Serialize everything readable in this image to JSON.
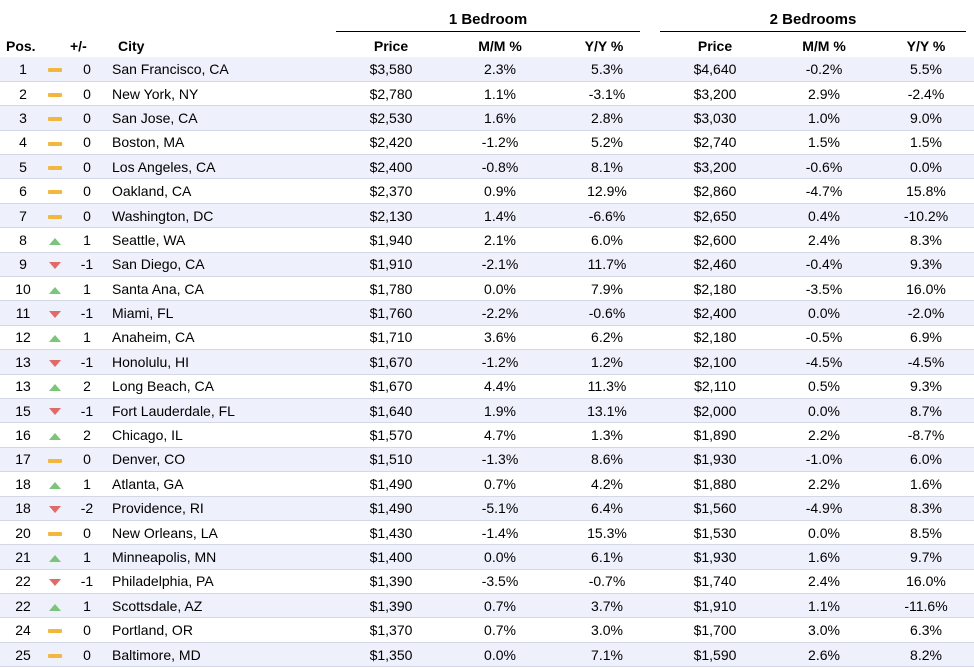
{
  "chart_data": {
    "type": "table",
    "groups": [
      "1 Bedroom",
      "2 Bedrooms"
    ],
    "columns": [
      "Pos.",
      "+/-",
      "City",
      "Price",
      "M/M %",
      "Y/Y %",
      "Price",
      "M/M %",
      "Y/Y %"
    ],
    "rows": [
      {
        "pos": "1",
        "trend": "flat",
        "chg": "0",
        "city": "San Francisco, CA",
        "p1": "$3,580",
        "mm1": "2.3%",
        "yy1": "5.3%",
        "p2": "$4,640",
        "mm2": "-0.2%",
        "yy2": "5.5%"
      },
      {
        "pos": "2",
        "trend": "flat",
        "chg": "0",
        "city": "New York, NY",
        "p1": "$2,780",
        "mm1": "1.1%",
        "yy1": "-3.1%",
        "p2": "$3,200",
        "mm2": "2.9%",
        "yy2": "-2.4%"
      },
      {
        "pos": "3",
        "trend": "flat",
        "chg": "0",
        "city": "San Jose, CA",
        "p1": "$2,530",
        "mm1": "1.6%",
        "yy1": "2.8%",
        "p2": "$3,030",
        "mm2": "1.0%",
        "yy2": "9.0%"
      },
      {
        "pos": "4",
        "trend": "flat",
        "chg": "0",
        "city": "Boston, MA",
        "p1": "$2,420",
        "mm1": "-1.2%",
        "yy1": "5.2%",
        "p2": "$2,740",
        "mm2": "1.5%",
        "yy2": "1.5%"
      },
      {
        "pos": "5",
        "trend": "flat",
        "chg": "0",
        "city": "Los Angeles, CA",
        "p1": "$2,400",
        "mm1": "-0.8%",
        "yy1": "8.1%",
        "p2": "$3,200",
        "mm2": "-0.6%",
        "yy2": "0.0%"
      },
      {
        "pos": "6",
        "trend": "flat",
        "chg": "0",
        "city": "Oakland, CA",
        "p1": "$2,370",
        "mm1": "0.9%",
        "yy1": "12.9%",
        "p2": "$2,860",
        "mm2": "-4.7%",
        "yy2": "15.8%"
      },
      {
        "pos": "7",
        "trend": "flat",
        "chg": "0",
        "city": "Washington, DC",
        "p1": "$2,130",
        "mm1": "1.4%",
        "yy1": "-6.6%",
        "p2": "$2,650",
        "mm2": "0.4%",
        "yy2": "-10.2%"
      },
      {
        "pos": "8",
        "trend": "up",
        "chg": "1",
        "city": "Seattle, WA",
        "p1": "$1,940",
        "mm1": "2.1%",
        "yy1": "6.0%",
        "p2": "$2,600",
        "mm2": "2.4%",
        "yy2": "8.3%"
      },
      {
        "pos": "9",
        "trend": "down",
        "chg": "-1",
        "city": "San Diego, CA",
        "p1": "$1,910",
        "mm1": "-2.1%",
        "yy1": "11.7%",
        "p2": "$2,460",
        "mm2": "-0.4%",
        "yy2": "9.3%"
      },
      {
        "pos": "10",
        "trend": "up",
        "chg": "1",
        "city": "Santa Ana, CA",
        "p1": "$1,780",
        "mm1": "0.0%",
        "yy1": "7.9%",
        "p2": "$2,180",
        "mm2": "-3.5%",
        "yy2": "16.0%"
      },
      {
        "pos": "11",
        "trend": "down",
        "chg": "-1",
        "city": "Miami, FL",
        "p1": "$1,760",
        "mm1": "-2.2%",
        "yy1": "-0.6%",
        "p2": "$2,400",
        "mm2": "0.0%",
        "yy2": "-2.0%"
      },
      {
        "pos": "12",
        "trend": "up",
        "chg": "1",
        "city": "Anaheim, CA",
        "p1": "$1,710",
        "mm1": "3.6%",
        "yy1": "6.2%",
        "p2": "$2,180",
        "mm2": "-0.5%",
        "yy2": "6.9%"
      },
      {
        "pos": "13",
        "trend": "down",
        "chg": "-1",
        "city": "Honolulu, HI",
        "p1": "$1,670",
        "mm1": "-1.2%",
        "yy1": "1.2%",
        "p2": "$2,100",
        "mm2": "-4.5%",
        "yy2": "-4.5%"
      },
      {
        "pos": "13",
        "trend": "up",
        "chg": "2",
        "city": "Long Beach, CA",
        "p1": "$1,670",
        "mm1": "4.4%",
        "yy1": "11.3%",
        "p2": "$2,110",
        "mm2": "0.5%",
        "yy2": "9.3%"
      },
      {
        "pos": "15",
        "trend": "down",
        "chg": "-1",
        "city": "Fort Lauderdale, FL",
        "p1": "$1,640",
        "mm1": "1.9%",
        "yy1": "13.1%",
        "p2": "$2,000",
        "mm2": "0.0%",
        "yy2": "8.7%"
      },
      {
        "pos": "16",
        "trend": "up",
        "chg": "2",
        "city": "Chicago, IL",
        "p1": "$1,570",
        "mm1": "4.7%",
        "yy1": "1.3%",
        "p2": "$1,890",
        "mm2": "2.2%",
        "yy2": "-8.7%"
      },
      {
        "pos": "17",
        "trend": "flat",
        "chg": "0",
        "city": "Denver, CO",
        "p1": "$1,510",
        "mm1": "-1.3%",
        "yy1": "8.6%",
        "p2": "$1,930",
        "mm2": "-1.0%",
        "yy2": "6.0%"
      },
      {
        "pos": "18",
        "trend": "up",
        "chg": "1",
        "city": "Atlanta, GA",
        "p1": "$1,490",
        "mm1": "0.7%",
        "yy1": "4.2%",
        "p2": "$1,880",
        "mm2": "2.2%",
        "yy2": "1.6%"
      },
      {
        "pos": "18",
        "trend": "down",
        "chg": "-2",
        "city": "Providence, RI",
        "p1": "$1,490",
        "mm1": "-5.1%",
        "yy1": "6.4%",
        "p2": "$1,560",
        "mm2": "-4.9%",
        "yy2": "8.3%"
      },
      {
        "pos": "20",
        "trend": "flat",
        "chg": "0",
        "city": "New Orleans, LA",
        "p1": "$1,430",
        "mm1": "-1.4%",
        "yy1": "15.3%",
        "p2": "$1,530",
        "mm2": "0.0%",
        "yy2": "8.5%"
      },
      {
        "pos": "21",
        "trend": "up",
        "chg": "1",
        "city": "Minneapolis, MN",
        "p1": "$1,400",
        "mm1": "0.0%",
        "yy1": "6.1%",
        "p2": "$1,930",
        "mm2": "1.6%",
        "yy2": "9.7%"
      },
      {
        "pos": "22",
        "trend": "down",
        "chg": "-1",
        "city": "Philadelphia, PA",
        "p1": "$1,390",
        "mm1": "-3.5%",
        "yy1": "-0.7%",
        "p2": "$1,740",
        "mm2": "2.4%",
        "yy2": "16.0%"
      },
      {
        "pos": "22",
        "trend": "up",
        "chg": "1",
        "city": "Scottsdale, AZ",
        "p1": "$1,390",
        "mm1": "0.7%",
        "yy1": "3.7%",
        "p2": "$1,910",
        "mm2": "1.1%",
        "yy2": "-11.6%"
      },
      {
        "pos": "24",
        "trend": "flat",
        "chg": "0",
        "city": "Portland, OR",
        "p1": "$1,370",
        "mm1": "0.7%",
        "yy1": "3.0%",
        "p2": "$1,700",
        "mm2": "3.0%",
        "yy2": "6.3%"
      },
      {
        "pos": "25",
        "trend": "flat",
        "chg": "0",
        "city": "Baltimore, MD",
        "p1": "$1,350",
        "mm1": "0.0%",
        "yy1": "7.1%",
        "p2": "$1,590",
        "mm2": "2.6%",
        "yy2": "8.2%"
      }
    ],
    "trend_colors": {
      "up": "#7bc47b",
      "down": "#e06a6a",
      "flat": "#f3b63f"
    }
  }
}
